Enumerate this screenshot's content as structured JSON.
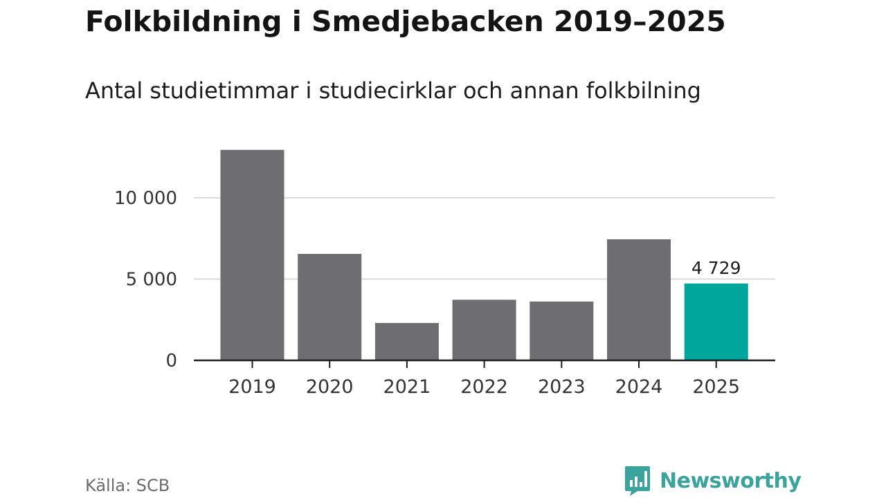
{
  "header": {
    "title": "Folkbildning i Smedjebacken 2019–2025",
    "subtitle": "Antal studietimmar i studiecirklar och annan folkbilning"
  },
  "footer": {
    "source": "Källa: SCB",
    "brand": "Newsworthy",
    "brand_icon": "bar-chart-speech-bubble-icon"
  },
  "colors": {
    "bar": "#6e6d72",
    "highlight": "#00a59b",
    "grid": "#dcdcdc",
    "axis": "#1c1c1c",
    "brand": "#3aa39c"
  },
  "chart_data": {
    "type": "bar",
    "title": "Folkbildning i Smedjebacken 2019–2025",
    "subtitle": "Antal studietimmar i studiecirklar och annan folkbilning",
    "xlabel": "",
    "ylabel": "",
    "categories": [
      "2019",
      "2020",
      "2021",
      "2022",
      "2023",
      "2024",
      "2025"
    ],
    "values": [
      12950,
      6550,
      2300,
      3730,
      3620,
      7450,
      4729
    ],
    "highlight_index": 6,
    "data_labels": [
      {
        "index": 6,
        "text": "4 729"
      }
    ],
    "yticks": [
      0,
      5000,
      10000
    ],
    "ytick_labels": [
      "0",
      "5 000",
      "10 000"
    ],
    "ylim": [
      0,
      14000
    ],
    "grid": true,
    "legend": "none"
  }
}
